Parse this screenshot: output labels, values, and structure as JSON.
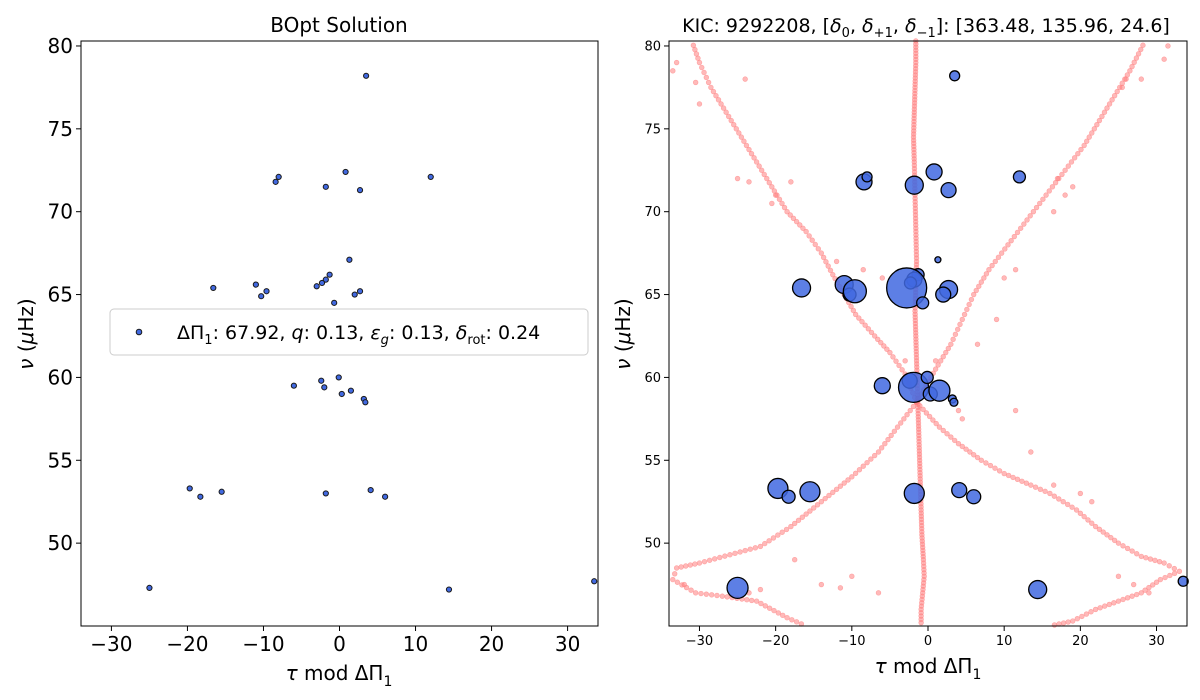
{
  "colors": {
    "observed": "#4169E1",
    "observed_edge": "#000000",
    "model": "#FF7F7F"
  },
  "chart_data": [
    {
      "type": "scatter",
      "title": "BOpt Solution",
      "xlabel": "τ mod ΔΠ₁",
      "ylabel": "ν (μHz)",
      "xlim": [
        -34.0,
        34.0
      ],
      "ylim": [
        45.0,
        80.3
      ],
      "xticks": [
        -30,
        -20,
        -10,
        0,
        10,
        20,
        30
      ],
      "yticks": [
        50,
        55,
        60,
        65,
        70,
        75,
        80
      ],
      "grid": false,
      "legend": {
        "position": "center",
        "label": "ΔΠ₁: 67.92, q: 0.13, ε_g: 0.13, δ_rot: 0.24",
        "label_parts": {
          "sym1": "ΔΠ",
          "sub1": "1",
          "val1": ": 67.92, ",
          "sym2": "q",
          "val2": ": 0.13, ",
          "sym3": "ε",
          "sub3": "g",
          "val3": ": 0.13, ",
          "sym4": "δ",
          "sub4": "rot",
          "val4": ": 0.24"
        }
      },
      "series": [
        {
          "name": "ΔΠ₁: 67.92, q: 0.13, ε_g: 0.13, δ_rot: 0.24",
          "points": [
            [
              3.5,
              78.2
            ],
            [
              -8.4,
              71.8
            ],
            [
              -8.0,
              72.1
            ],
            [
              -1.8,
              71.5
            ],
            [
              0.8,
              72.4
            ],
            [
              2.7,
              71.3
            ],
            [
              12.0,
              72.1
            ],
            [
              1.3,
              67.1
            ],
            [
              -11.0,
              65.6
            ],
            [
              -10.3,
              64.9
            ],
            [
              -9.6,
              65.2
            ],
            [
              -16.6,
              65.4
            ],
            [
              -1.3,
              66.2
            ],
            [
              -1.8,
              65.9
            ],
            [
              -2.3,
              65.7
            ],
            [
              -3.0,
              65.5
            ],
            [
              2.7,
              65.2
            ],
            [
              2.0,
              65.0
            ],
            [
              -0.7,
              64.5
            ],
            [
              -6.0,
              59.5
            ],
            [
              -2.4,
              59.8
            ],
            [
              -2.0,
              59.4
            ],
            [
              -0.1,
              60.0
            ],
            [
              0.3,
              59.0
            ],
            [
              1.5,
              59.2
            ],
            [
              3.2,
              58.7
            ],
            [
              3.4,
              58.5
            ],
            [
              -19.7,
              53.3
            ],
            [
              -18.3,
              52.8
            ],
            [
              -15.5,
              53.1
            ],
            [
              -1.8,
              53.0
            ],
            [
              4.1,
              53.2
            ],
            [
              6.0,
              52.8
            ],
            [
              -25.0,
              47.3
            ],
            [
              14.4,
              47.2
            ],
            [
              33.5,
              47.7
            ]
          ]
        }
      ]
    },
    {
      "type": "scatter",
      "title": "KIC: 9292208, [δ₀, δ₊₁, δ₋₁]: [363.48, 135.96, 24.6]",
      "title_parts": {
        "pre": "KIC: 9292208, [",
        "d": "δ",
        "s0": "0",
        "s1": "+1",
        "s2": "−1",
        "sep": ", ",
        "post": "]: [363.48, 135.96, 24.6]"
      },
      "xlabel": "τ mod ΔΠ₁",
      "ylabel": "ν (μHz)",
      "xlim": [
        -34.0,
        34.0
      ],
      "ylim": [
        45.0,
        80.3
      ],
      "xticks": [
        -30,
        -20,
        -10,
        0,
        10,
        20,
        30
      ],
      "yticks": [
        50,
        55,
        60,
        65,
        70,
        75,
        80
      ],
      "grid": false,
      "series": [
        {
          "role": "observed",
          "points": [
            [
              3.5,
              78.2,
              1.0
            ],
            [
              -8.4,
              71.8,
              1.6
            ],
            [
              -8.0,
              72.1,
              1.0
            ],
            [
              -1.8,
              71.6,
              1.8
            ],
            [
              0.8,
              72.4,
              1.6
            ],
            [
              2.7,
              71.3,
              1.5
            ],
            [
              12.0,
              72.1,
              1.2
            ],
            [
              1.3,
              67.1,
              0.6
            ],
            [
              -11.0,
              65.6,
              1.8
            ],
            [
              -10.3,
              65.0,
              1.3
            ],
            [
              -9.6,
              65.2,
              2.3
            ],
            [
              -16.6,
              65.4,
              1.8
            ],
            [
              -1.3,
              66.2,
              1.2
            ],
            [
              -1.8,
              65.9,
              1.5
            ],
            [
              -2.3,
              65.7,
              1.2
            ],
            [
              -2.8,
              65.4,
              4.0
            ],
            [
              2.7,
              65.3,
              1.8
            ],
            [
              2.0,
              65.0,
              1.5
            ],
            [
              -0.7,
              64.5,
              1.2
            ],
            [
              -6.0,
              59.5,
              1.6
            ],
            [
              -2.4,
              59.8,
              1.5
            ],
            [
              -1.9,
              59.4,
              3.0
            ],
            [
              -0.1,
              60.0,
              1.2
            ],
            [
              0.3,
              59.0,
              1.4
            ],
            [
              1.5,
              59.2,
              2.1
            ],
            [
              3.2,
              58.7,
              0.8
            ],
            [
              3.4,
              58.5,
              0.8
            ],
            [
              -19.7,
              53.3,
              2.0
            ],
            [
              -18.3,
              52.8,
              1.3
            ],
            [
              -15.5,
              53.1,
              2.0
            ],
            [
              -1.8,
              53.0,
              2.0
            ],
            [
              4.1,
              53.2,
              1.5
            ],
            [
              6.0,
              52.8,
              1.4
            ],
            [
              -25.0,
              47.3,
              2.1
            ],
            [
              14.4,
              47.2,
              1.8
            ],
            [
              33.5,
              47.7,
              1.0
            ]
          ]
        }
      ],
      "model_tracks": {
        "central": [
          [
            -1.6,
            80.3
          ],
          [
            -1.6,
            79.0
          ],
          [
            -1.7,
            77.5
          ],
          [
            -1.8,
            76.0
          ],
          [
            -1.9,
            74.5
          ],
          [
            -1.8,
            73.0
          ],
          [
            -1.7,
            71.0
          ],
          [
            -1.6,
            69.0
          ],
          [
            -1.5,
            67.0
          ],
          [
            -1.6,
            65.5
          ],
          [
            -1.7,
            64.0
          ],
          [
            -1.6,
            62.5
          ],
          [
            -1.5,
            61.0
          ],
          [
            -1.4,
            59.5
          ],
          [
            -1.3,
            58.0
          ],
          [
            -1.2,
            56.5
          ],
          [
            -1.1,
            55.0
          ],
          [
            -1.0,
            53.5
          ],
          [
            -0.9,
            52.0
          ],
          [
            -0.8,
            50.5
          ],
          [
            -0.6,
            49.0
          ],
          [
            -0.5,
            48.0
          ],
          [
            -0.7,
            47.0
          ],
          [
            -0.9,
            46.0
          ],
          [
            -0.9,
            45.0
          ]
        ],
        "left_upper": [
          [
            -1.5,
            58.5
          ],
          [
            -3.0,
            60.2
          ],
          [
            -5.0,
            61.5
          ],
          [
            -7.0,
            62.5
          ],
          [
            -9.5,
            63.8
          ],
          [
            -11.0,
            65.0
          ],
          [
            -12.5,
            66.2
          ],
          [
            -14.0,
            67.5
          ],
          [
            -16.0,
            68.8
          ],
          [
            -18.5,
            70.0
          ],
          [
            -20.5,
            71.5
          ],
          [
            -22.5,
            73.0
          ],
          [
            -24.5,
            74.5
          ],
          [
            -26.5,
            76.0
          ],
          [
            -28.5,
            77.5
          ],
          [
            -30.0,
            79.0
          ],
          [
            -31.0,
            80.3
          ]
        ],
        "right_upper": [
          [
            -1.5,
            58.5
          ],
          [
            1.0,
            60.5
          ],
          [
            3.0,
            62.0
          ],
          [
            4.5,
            63.5
          ],
          [
            6.0,
            65.0
          ],
          [
            8.0,
            66.5
          ],
          [
            10.5,
            68.0
          ],
          [
            13.0,
            69.5
          ],
          [
            15.5,
            71.0
          ],
          [
            18.0,
            72.5
          ],
          [
            20.5,
            74.0
          ],
          [
            22.5,
            75.5
          ],
          [
            24.5,
            77.0
          ],
          [
            26.5,
            78.5
          ],
          [
            28.5,
            80.3
          ]
        ],
        "left_lower": [
          [
            -1.5,
            58.5
          ],
          [
            -4.0,
            57.0
          ],
          [
            -6.5,
            55.5
          ],
          [
            -10.0,
            54.0
          ],
          [
            -14.0,
            52.5
          ],
          [
            -18.0,
            51.0
          ],
          [
            -22.0,
            49.8
          ],
          [
            -26.0,
            49.3
          ],
          [
            -30.0,
            48.8
          ],
          [
            -33.0,
            48.5
          ],
          [
            -33.5,
            47.8
          ],
          [
            -30.5,
            47.0
          ],
          [
            -27.0,
            46.8
          ],
          [
            -22.5,
            46.5
          ],
          [
            -18.5,
            45.5
          ],
          [
            -16.0,
            45.0
          ]
        ],
        "right_lower": [
          [
            -1.5,
            58.5
          ],
          [
            1.5,
            57.0
          ],
          [
            4.0,
            56.0
          ],
          [
            7.0,
            55.0
          ],
          [
            10.0,
            54.2
          ],
          [
            13.5,
            53.5
          ],
          [
            16.0,
            53.0
          ],
          [
            19.5,
            52.0
          ],
          [
            22.0,
            51.0
          ],
          [
            25.0,
            50.0
          ],
          [
            28.0,
            49.2
          ],
          [
            31.0,
            48.8
          ],
          [
            33.0,
            48.3
          ],
          [
            30.5,
            47.8
          ],
          [
            28.0,
            47.0
          ],
          [
            25.0,
            46.5
          ],
          [
            22.0,
            46.0
          ],
          [
            19.0,
            45.3
          ],
          [
            16.0,
            45.0
          ]
        ],
        "scatter": [
          [
            -33.5,
            78.5
          ],
          [
            -33.0,
            79.0
          ],
          [
            -30.5,
            77.8
          ],
          [
            -30.0,
            76.5
          ],
          [
            -24.0,
            78.0
          ],
          [
            -25.0,
            72.0
          ],
          [
            -23.5,
            71.8
          ],
          [
            -20.0,
            71.0
          ],
          [
            -18.0,
            71.8
          ],
          [
            -20.5,
            70.5
          ],
          [
            -12.0,
            67.0
          ],
          [
            -8.5,
            66.5
          ],
          [
            -6.0,
            66.0
          ],
          [
            -3.0,
            61.0
          ],
          [
            1.0,
            61.0
          ],
          [
            4.0,
            58.0
          ],
          [
            4.5,
            57.5
          ],
          [
            10.0,
            66.0
          ],
          [
            11.5,
            66.5
          ],
          [
            16.5,
            70.0
          ],
          [
            18.0,
            71.0
          ],
          [
            17.0,
            72.0
          ],
          [
            19.0,
            71.5
          ],
          [
            25.5,
            77.5
          ],
          [
            26.0,
            78.0
          ],
          [
            28.0,
            78.0
          ],
          [
            31.0,
            79.2
          ],
          [
            31.5,
            80.0
          ],
          [
            6.5,
            62.0
          ],
          [
            9.0,
            63.5
          ],
          [
            11.5,
            58.0
          ],
          [
            13.5,
            55.5
          ],
          [
            16.5,
            53.5
          ],
          [
            20.0,
            53.0
          ],
          [
            21.5,
            52.5
          ],
          [
            -17.5,
            49.0
          ],
          [
            -14.0,
            47.5
          ],
          [
            -11.5,
            47.3
          ],
          [
            -6.5,
            47.0
          ],
          [
            -10.0,
            48.0
          ],
          [
            25.0,
            48.0
          ],
          [
            27.0,
            47.5
          ],
          [
            29.0,
            47.0
          ],
          [
            -23.5,
            47.0
          ],
          [
            -22.0,
            47.2
          ],
          [
            -32.0,
            47.5
          ]
        ]
      }
    }
  ]
}
